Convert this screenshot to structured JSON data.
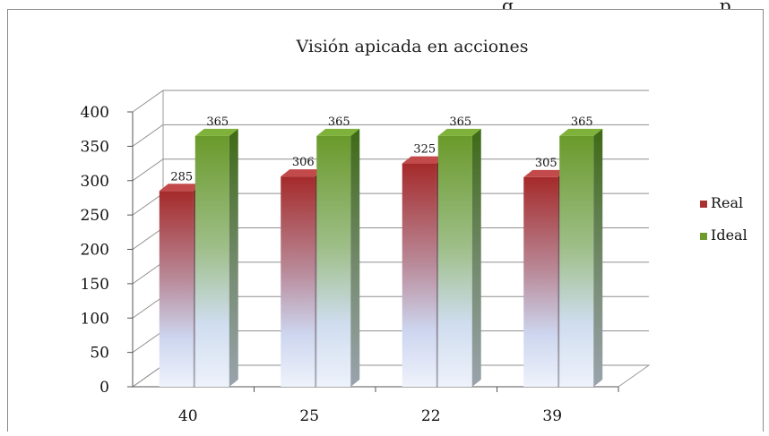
{
  "page": {
    "top_text": "g",
    "top_text_2": "p"
  },
  "chart_data": {
    "type": "bar",
    "title": "Visión apicada en acciones",
    "categories": [
      "40",
      "25",
      "22",
      "39"
    ],
    "series": [
      {
        "name": "Real",
        "values": [
          285,
          306,
          325,
          305
        ],
        "color": "#a83232"
      },
      {
        "name": "Ideal",
        "values": [
          365,
          365,
          365,
          365
        ],
        "color": "#6e9a2e"
      }
    ],
    "ylim": [
      0,
      400
    ],
    "yticks": [
      0,
      50,
      100,
      150,
      200,
      250,
      300,
      350,
      400
    ],
    "grid": true,
    "legend_position": "right"
  }
}
